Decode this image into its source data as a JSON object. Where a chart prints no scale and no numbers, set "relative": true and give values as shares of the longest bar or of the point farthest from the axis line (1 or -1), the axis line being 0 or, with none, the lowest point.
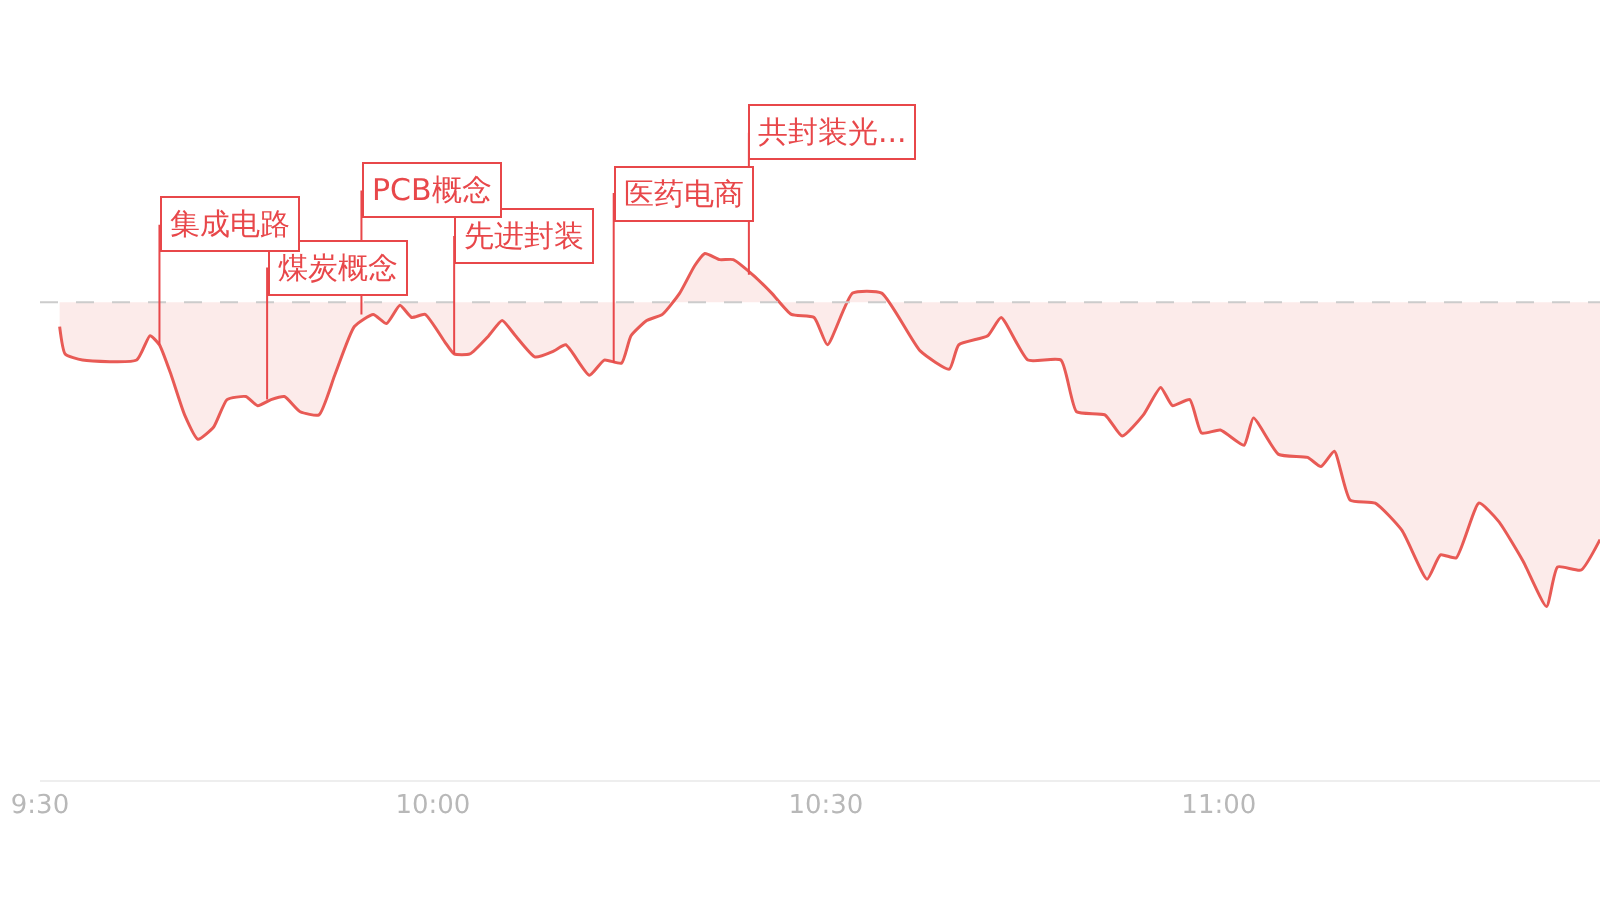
{
  "chart_data": {
    "type": "area",
    "relative": true,
    "color": "#e85a55",
    "x": [
      9.525,
      9.532,
      9.554,
      9.623,
      9.64,
      9.652,
      9.667,
      9.684,
      9.701,
      9.721,
      9.738,
      9.762,
      9.777,
      9.794,
      9.811,
      9.831,
      9.855,
      9.875,
      9.9,
      9.924,
      9.941,
      9.958,
      9.973,
      9.99,
      10.015,
      10.027,
      10.047,
      10.071,
      10.088,
      10.105,
      10.13,
      10.154,
      10.169,
      10.199,
      10.218,
      10.24,
      10.252,
      10.272,
      10.292,
      10.314,
      10.333,
      10.346,
      10.365,
      10.382,
      10.407,
      10.431,
      10.456,
      10.485,
      10.502,
      10.534,
      10.571,
      10.62,
      10.657,
      10.669,
      10.706,
      10.723,
      10.757,
      10.799,
      10.819,
      10.855,
      10.877,
      10.904,
      10.926,
      10.941,
      10.963,
      10.978,
      11.002,
      11.032,
      11.044,
      11.076,
      11.113,
      11.13,
      11.147,
      11.167,
      11.199,
      11.233,
      11.265,
      11.282,
      11.302,
      11.331,
      11.356,
      11.387,
      11.417,
      11.431,
      11.461,
      11.485
    ],
    "values": [
      -0.08,
      -0.17,
      -0.19,
      -0.19,
      -0.11,
      -0.14,
      -0.24,
      -0.37,
      -0.45,
      -0.41,
      -0.32,
      -0.31,
      -0.34,
      -0.32,
      -0.31,
      -0.36,
      -0.37,
      -0.24,
      -0.08,
      -0.04,
      -0.07,
      -0.01,
      -0.05,
      -0.04,
      -0.13,
      -0.17,
      -0.17,
      -0.11,
      -0.06,
      -0.11,
      -0.18,
      -0.16,
      -0.14,
      -0.24,
      -0.19,
      -0.2,
      -0.11,
      -0.06,
      -0.04,
      0.03,
      0.12,
      0.16,
      0.14,
      0.14,
      0.09,
      0.03,
      -0.04,
      -0.05,
      -0.14,
      0.03,
      0.03,
      -0.16,
      -0.22,
      -0.14,
      -0.11,
      -0.05,
      -0.19,
      -0.19,
      -0.36,
      -0.37,
      -0.44,
      -0.37,
      -0.28,
      -0.34,
      -0.32,
      -0.43,
      -0.42,
      -0.47,
      -0.38,
      -0.5,
      -0.51,
      -0.54,
      -0.49,
      -0.65,
      -0.66,
      -0.75,
      -0.91,
      -0.83,
      -0.84,
      -0.66,
      -0.72,
      -0.85,
      -1.0,
      -0.87,
      -0.88,
      -0.78
    ],
    "xlim": [
      9.5,
      11.485
    ],
    "xticks": [
      {
        "value": 9.5,
        "label": "9:30"
      },
      {
        "value": 10,
        "label": "10:00"
      },
      {
        "value": 10.5,
        "label": "10:30"
      },
      {
        "value": 11,
        "label": "11:00"
      }
    ],
    "ref_lines": [
      {
        "axis": "y",
        "value": 0,
        "color": "#cccccc",
        "line_style": "dashed"
      }
    ],
    "annotations": [
      {
        "text": "集成电路",
        "x": 9.652,
        "y": -0.14
      },
      {
        "text": "煤炭概念",
        "x": 9.789,
        "y": -0.32
      },
      {
        "text": "PCB概念",
        "x": 9.909,
        "y": -0.04
      },
      {
        "text": "先进封装",
        "x": 10.027,
        "y": -0.17
      },
      {
        "text": "医药电商",
        "x": 10.23,
        "y": -0.2
      },
      {
        "text": "共封装光...",
        "x": 10.402,
        "y": 0.09
      }
    ],
    "tick_labels": "x",
    "marker": "none",
    "line_style": "solid"
  }
}
